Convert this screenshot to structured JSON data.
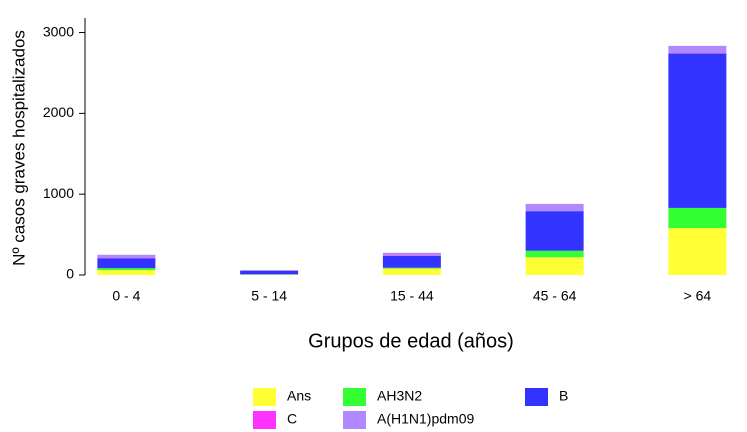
{
  "chart_data": {
    "type": "stacked-bar",
    "x_label": "Grupos de edad (años)",
    "y_label": "Nº casos graves hospitalizados",
    "categories": [
      "0 - 4",
      "5 - 14",
      "15 - 44",
      "45 - 64",
      "> 64"
    ],
    "series": [
      {
        "name": "Ans",
        "color": "#ffff33",
        "values": [
          60,
          5,
          80,
          220,
          580
        ]
      },
      {
        "name": "AH3N2",
        "color": "#33ff33",
        "values": [
          25,
          3,
          10,
          80,
          250
        ]
      },
      {
        "name": "B",
        "color": "#3333ff",
        "values": [
          120,
          45,
          145,
          490,
          1910
        ]
      },
      {
        "name": "C",
        "color": "#ff33ff",
        "values": [
          5,
          0,
          5,
          0,
          5
        ]
      },
      {
        "name": "A(H1N1)pdm09",
        "color": "#b088ff",
        "values": [
          40,
          7,
          35,
          90,
          90
        ]
      }
    ],
    "ylim": [
      0,
      3180
    ],
    "yticks": [
      0,
      1000,
      2000,
      3000
    ]
  }
}
